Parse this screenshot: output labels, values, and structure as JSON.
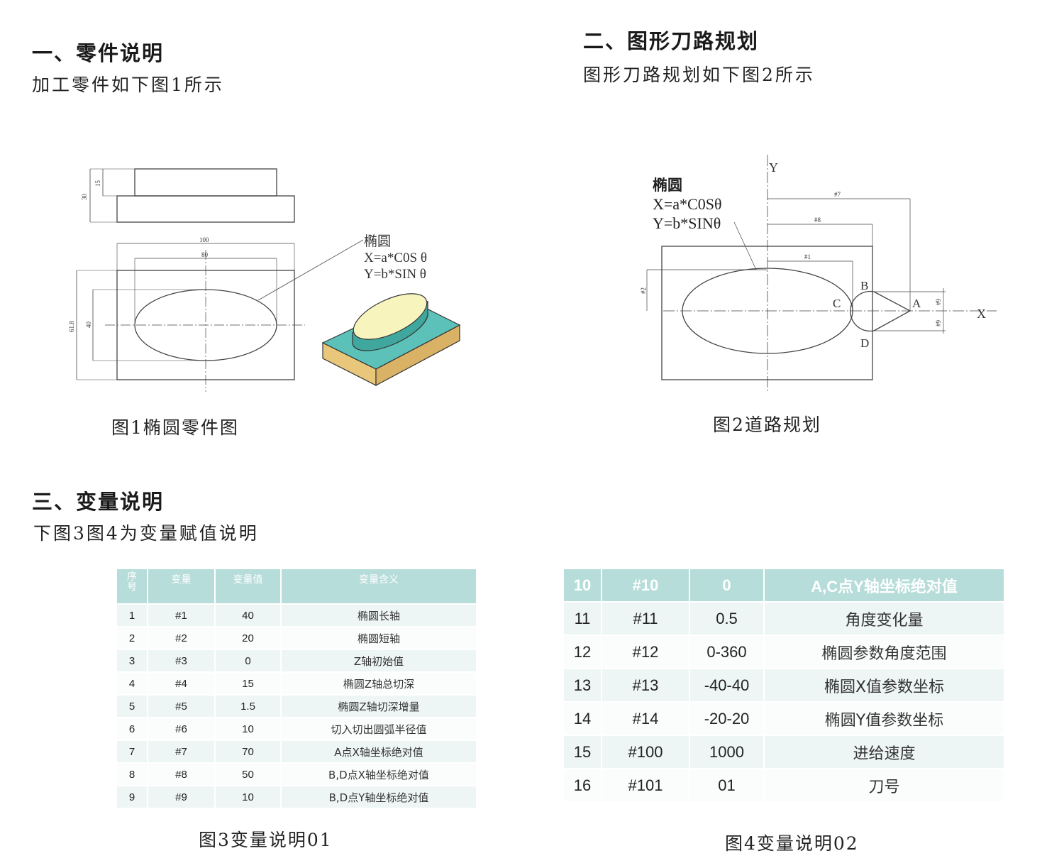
{
  "section1": {
    "heading": "一、零件说明",
    "subtitle": "加工零件如下图1所示",
    "caption": "图1椭圆零件图",
    "figure": {
      "dims": [
        "30",
        "15",
        "100",
        "80",
        "61.8",
        "40"
      ],
      "label": "椭圆",
      "formula_x": "X=a*C0S θ",
      "formula_y": "Y=b*SIN θ"
    }
  },
  "section2": {
    "heading": "二、图形刀路规划",
    "subtitle": "图形刀路规划如下图2所示",
    "caption": "图2道路规划",
    "figure": {
      "label": "椭圆",
      "formula_x": "X=a*C0Sθ",
      "formula_y": "Y=b*SINθ",
      "axis_x": "X",
      "axis_y": "Y",
      "points": [
        "A",
        "B",
        "C",
        "D"
      ],
      "dims": [
        "#7",
        "#8",
        "#1",
        "#2",
        "#9",
        "#9"
      ]
    }
  },
  "section3": {
    "heading": "三、变量说明",
    "subtitle": "下图3图4为变量赋值说明",
    "caption3": "图3变量说明01",
    "caption4": "图4变量说明02"
  },
  "table1": {
    "headers": [
      "序号",
      "变量",
      "变量值",
      "变量含义"
    ],
    "rows": [
      [
        "1",
        "#1",
        "40",
        "椭圆长轴"
      ],
      [
        "2",
        "#2",
        "20",
        "椭圆短轴"
      ],
      [
        "3",
        "#3",
        "0",
        "Z轴初始值"
      ],
      [
        "4",
        "#4",
        "15",
        "椭圆Z轴总切深"
      ],
      [
        "5",
        "#5",
        "1.5",
        "椭圆Z轴切深增量"
      ],
      [
        "6",
        "#6",
        "10",
        "切入切出圆弧半径值"
      ],
      [
        "7",
        "#7",
        "70",
        "A点X轴坐标绝对值"
      ],
      [
        "8",
        "#8",
        "50",
        "B,D点X轴坐标绝对值"
      ],
      [
        "9",
        "#9",
        "10",
        "B,D点Y轴坐标绝对值"
      ]
    ]
  },
  "table2": {
    "headers": [
      "10",
      "#10",
      "0",
      "A,C点Y轴坐标绝对值"
    ],
    "rows": [
      [
        "11",
        "#11",
        "0.5",
        "角度变化量"
      ],
      [
        "12",
        "#12",
        "0-360",
        "椭圆参数角度范围"
      ],
      [
        "13",
        "#13",
        "-40-40",
        "椭圆X值参数坐标"
      ],
      [
        "14",
        "#14",
        "-20-20",
        "椭圆Y值参数坐标"
      ],
      [
        "15",
        "#100",
        "1000",
        "进给速度"
      ],
      [
        "16",
        "#101",
        "01",
        "刀号"
      ]
    ]
  },
  "colors": {
    "table_header": "#b6ddd9",
    "row_tint": "#eef6f5",
    "block_top": "#5cc1b8",
    "block_side": "#e8c77a",
    "ellipse_top": "#f8f4bd"
  }
}
